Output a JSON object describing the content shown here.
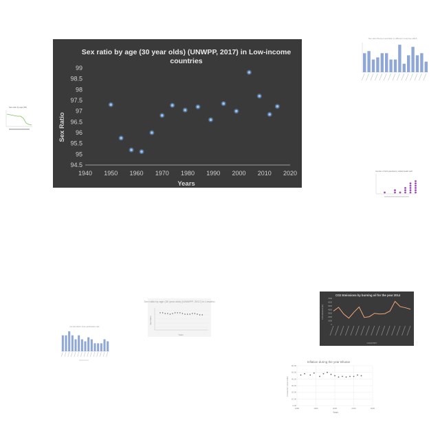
{
  "chart_data": {
    "type": "scatter",
    "title": "Sex ratio by age (30 year olds) (UNWPP, 2017) in Low-income countries",
    "title_lines": [
      "Sex ratio by age (30 year olds) (UNWPP, 2017) in Low-income",
      "countries"
    ],
    "xlabel": "Years",
    "ylabel": "Sex Ratio",
    "xlim": [
      1940,
      2020
    ],
    "ylim": [
      94.5,
      99
    ],
    "x_ticks": [
      "1940",
      "1950",
      "1960",
      "1970",
      "1980",
      "1990",
      "2000",
      "2010",
      "2020"
    ],
    "y_ticks": [
      "94.5",
      "95",
      "95.5",
      "96",
      "96.5",
      "97",
      "97.5",
      "98",
      "98.5",
      "99"
    ],
    "grid": false,
    "background": "#3a3a3a",
    "point_color": "#8fc4ff",
    "x": [
      1950,
      1954,
      1958,
      1962,
      1966,
      1970,
      1974,
      1979,
      1984,
      1989,
      1994,
      1999,
      2004,
      2008,
      2012,
      2015
    ],
    "y": [
      97.3,
      95.75,
      95.2,
      95.12,
      96.0,
      96.8,
      97.27,
      97.05,
      97.2,
      96.6,
      97.35,
      97.0,
      98.8,
      97.7,
      96.85,
      97.22
    ]
  },
  "thumbnails": {
    "top_right_bar": {
      "title": "Sex ratio Women and Men in different countries 2015",
      "values": [
        9,
        10,
        6,
        7,
        9,
        9,
        6,
        6,
        13,
        4,
        8,
        12,
        8,
        9,
        5
      ]
    },
    "left_line": {
      "title": "Sex ratio by age (30)"
    },
    "right_dot": {
      "title": "Number of birth attended by skilled health staff",
      "stack_counts": [
        0,
        1,
        0,
        2,
        1,
        3,
        5,
        6
      ]
    },
    "center_line": {
      "title": "Sex ratio by age (30 year olds) (UNWPP, 2017) in Lesotho",
      "xlabel": "Years",
      "ylabel": "Sex Ratio"
    },
    "left_bar": {
      "title": "Female labour force participation rate",
      "values": [
        8,
        8,
        10,
        8,
        6,
        8,
        6,
        5,
        7,
        6,
        4,
        4,
        4,
        6,
        5
      ]
    },
    "co2_line": {
      "title": "CO2 Emissions by burning oil for the year 2014",
      "xlabel": "COUNTRY",
      "ylabel": "CO2 emissions (kt)",
      "y_ticks": [
        "0",
        "1000",
        "2000",
        "3000",
        "4000",
        "5000",
        "6000",
        "7000"
      ],
      "values": [
        3600,
        4600,
        2800,
        1700,
        3300,
        4700,
        1900,
        2100,
        3000,
        2800,
        2900,
        3600,
        6200,
        4800,
        4500,
        4100
      ]
    },
    "inflation_scatter": {
      "title": "Inflation during the year Bhutan",
      "xlabel": "Years",
      "ylabel": "Consumer price index",
      "x_ticks": [
        "1980",
        "1990",
        "2000",
        "2010",
        "2020"
      ],
      "y_ticks": [
        "0.00",
        "10.00",
        "20.00",
        "30.00",
        "40.00",
        "50.00",
        "60.00"
      ],
      "x": [
        1982,
        1984,
        1987,
        1989,
        1992,
        1994,
        1996,
        1998,
        2000,
        2002,
        2004,
        2006,
        2008,
        2010,
        2012,
        2014
      ],
      "y": [
        46,
        48,
        46,
        49,
        44,
        48,
        50,
        47,
        45,
        43,
        44,
        43,
        44,
        44,
        46,
        45
      ]
    }
  }
}
